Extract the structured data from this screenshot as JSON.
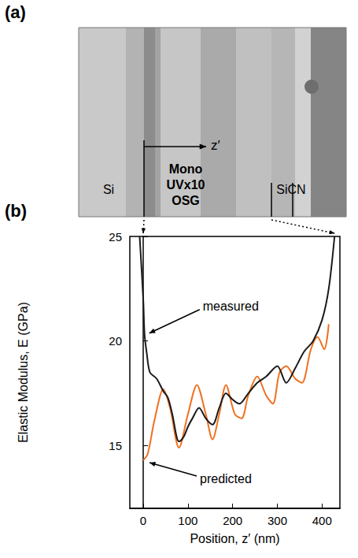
{
  "figure": {
    "panel_a": {
      "label": "(a)",
      "left_label": "Si",
      "middle_label": [
        "Mono",
        "UVx10",
        "OSG"
      ],
      "right_label": "SiCN",
      "arrow_label": "z′"
    },
    "panel_b_label": "(b)"
  },
  "chart_data": {
    "type": "line",
    "x_label": "Position, z′ (nm)",
    "y_label": "Elastic Modulus, E (GPa)",
    "xlim": [
      -30,
      440
    ],
    "xticks": [
      0,
      100,
      200,
      300,
      400
    ],
    "ylim": [
      12,
      25
    ],
    "yticks": [
      15,
      20,
      25
    ],
    "grid": false,
    "series": [
      {
        "name": "measured",
        "color": "#1a1a1a",
        "x": [
          -8,
          0,
          3,
          8,
          15,
          30,
          45,
          55,
          65,
          75,
          80,
          90,
          100,
          110,
          125,
          140,
          155,
          170,
          185,
          200,
          215,
          235,
          255,
          275,
          300,
          320,
          340,
          360,
          380,
          400,
          415,
          428
        ],
        "values": [
          25,
          22,
          20.3,
          19.4,
          18.5,
          18.2,
          17.6,
          17.3,
          16.5,
          15.4,
          15.2,
          15.4,
          15.9,
          16.3,
          16.8,
          16.3,
          16.0,
          16.8,
          17.5,
          17.2,
          17.0,
          17.5,
          18.0,
          18.3,
          18.8,
          18.0,
          18.7,
          19.5,
          20.0,
          21.0,
          22.5,
          25
        ]
      },
      {
        "name": "predicted",
        "color": "#f07020",
        "x": [
          0,
          10,
          25,
          45,
          60,
          80,
          100,
          120,
          140,
          155,
          170,
          185,
          205,
          220,
          235,
          255,
          275,
          290,
          305,
          320,
          340,
          355,
          375,
          390,
          405,
          415
        ],
        "values": [
          14.3,
          14.6,
          16.2,
          17.7,
          16.8,
          14.9,
          16.5,
          17.9,
          16.5,
          15.3,
          16.5,
          17.9,
          16.5,
          16.3,
          17.4,
          18.3,
          17.4,
          17.0,
          18.5,
          18.8,
          18.2,
          18.0,
          19.6,
          20.2,
          19.6,
          20.8
        ]
      }
    ]
  }
}
